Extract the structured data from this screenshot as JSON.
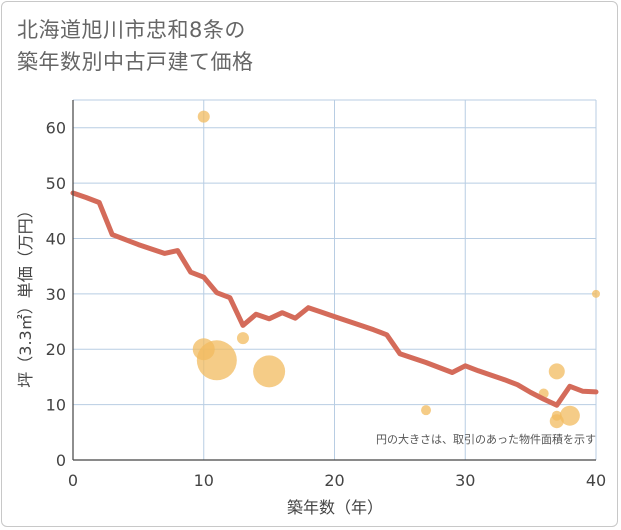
{
  "title": {
    "line1": "北海道旭川市忠和8条の",
    "line2": "築年数別中古戸建て価格"
  },
  "colors": {
    "line": "#d46b5a",
    "bubble": "#f2bb5f",
    "grid": "#b8cde3",
    "axis": "#444444"
  },
  "chart_data": {
    "type": "scatter",
    "xlabel": "築年数（年）",
    "ylabel": "坪（3.3㎡）単価（万円）",
    "xlim": [
      0,
      40
    ],
    "ylim": [
      0,
      65
    ],
    "xticks": [
      0,
      10,
      20,
      30,
      40
    ],
    "yticks": [
      0,
      10,
      20,
      30,
      40,
      50,
      60
    ],
    "note": "円の大きさは、取引のあった物件面積を示す",
    "series": [
      {
        "name": "bubbles",
        "kind": "scatter",
        "points": [
          {
            "x": 10,
            "y": 62,
            "size": 6
          },
          {
            "x": 10,
            "y": 20,
            "size": 11
          },
          {
            "x": 11,
            "y": 18,
            "size": 20
          },
          {
            "x": 13,
            "y": 22,
            "size": 6
          },
          {
            "x": 15,
            "y": 16,
            "size": 16
          },
          {
            "x": 27,
            "y": 9,
            "size": 5
          },
          {
            "x": 36,
            "y": 12,
            "size": 5
          },
          {
            "x": 37,
            "y": 16,
            "size": 8
          },
          {
            "x": 37,
            "y": 7,
            "size": 7
          },
          {
            "x": 37,
            "y": 8,
            "size": 5
          },
          {
            "x": 38,
            "y": 8,
            "size": 10
          },
          {
            "x": 40,
            "y": 30,
            "size": 4
          }
        ]
      },
      {
        "name": "trend",
        "kind": "line",
        "x": [
          0,
          1,
          2,
          3,
          4,
          5,
          6,
          7,
          8,
          9,
          10,
          11,
          12,
          13,
          14,
          15,
          16,
          17,
          18,
          19,
          20,
          21,
          22,
          23,
          24,
          25,
          26,
          27,
          28,
          29,
          30,
          31,
          32,
          33,
          34,
          35,
          36,
          37,
          38,
          39,
          40
        ],
        "y": [
          48.2,
          47.4,
          46.5,
          40.7,
          39.8,
          38.9,
          38.1,
          37.3,
          37.8,
          33.9,
          33.0,
          30.2,
          29.3,
          24.3,
          26.3,
          25.5,
          26.6,
          25.6,
          27.5,
          26.7,
          25.9,
          25.1,
          24.3,
          23.5,
          22.6,
          19.2,
          18.4,
          17.6,
          16.7,
          15.8,
          17.0,
          16.1,
          15.3,
          14.5,
          13.6,
          12.2,
          11.0,
          9.9,
          13.3,
          12.4,
          12.3
        ]
      }
    ]
  }
}
